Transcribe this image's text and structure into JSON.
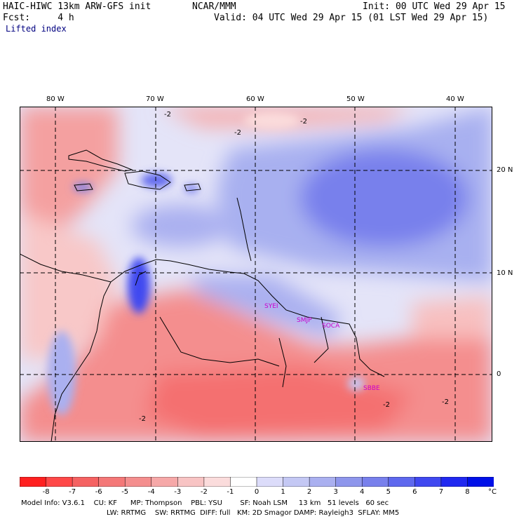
{
  "header": {
    "model_title": "HAIC-HIWC 13km ARW-GFS init",
    "org": "NCAR/MMM",
    "init": "Init: 00 UTC Wed 29 Apr 15",
    "fcst": "Fcst:     4 h",
    "valid": "Valid: 04 UTC Wed 29 Apr 15 (01 LST Wed 29 Apr 15)",
    "field": "Lifted index"
  },
  "map": {
    "lon_labels": [
      "80 W",
      "70 W",
      "60 W",
      "50 W",
      "40 W"
    ],
    "lat_labels": [
      "20 N",
      "10 N",
      "0"
    ],
    "contour_label": "-2",
    "station_labels": [
      "SYEI",
      "SMJP",
      "SOCA",
      "SBBE"
    ]
  },
  "colorbar": {
    "ticks": [
      "-8",
      "-7",
      "-6",
      "-5",
      "-4",
      "-3",
      "-2",
      "-1",
      "0",
      "1",
      "2",
      "3",
      "4",
      "5",
      "6",
      "7",
      "8"
    ],
    "unit": "°C",
    "colors": [
      "#ff2020",
      "#ff4848",
      "#f56262",
      "#f47878",
      "#f48e8e",
      "#f6a8a8",
      "#f8c4c4",
      "#fbdcdc",
      "#ffffff",
      "#dcdcfa",
      "#c4c8f4",
      "#aab0f0",
      "#8e96ec",
      "#7880ec",
      "#5e68ee",
      "#4048f0",
      "#2028f0",
      "#0010e8"
    ]
  },
  "footer": {
    "line1": "Model Info: V3.6.1    CU: KF      MP: Thompson    PBL: YSU        SF: Noah LSM     13 km   51 levels   60 sec",
    "line2": "LW: RRTMG    SW: RRTMG  DIFF: full   KM: 2D Smagor DAMP: Rayleigh3  SFLAY: MM5"
  }
}
